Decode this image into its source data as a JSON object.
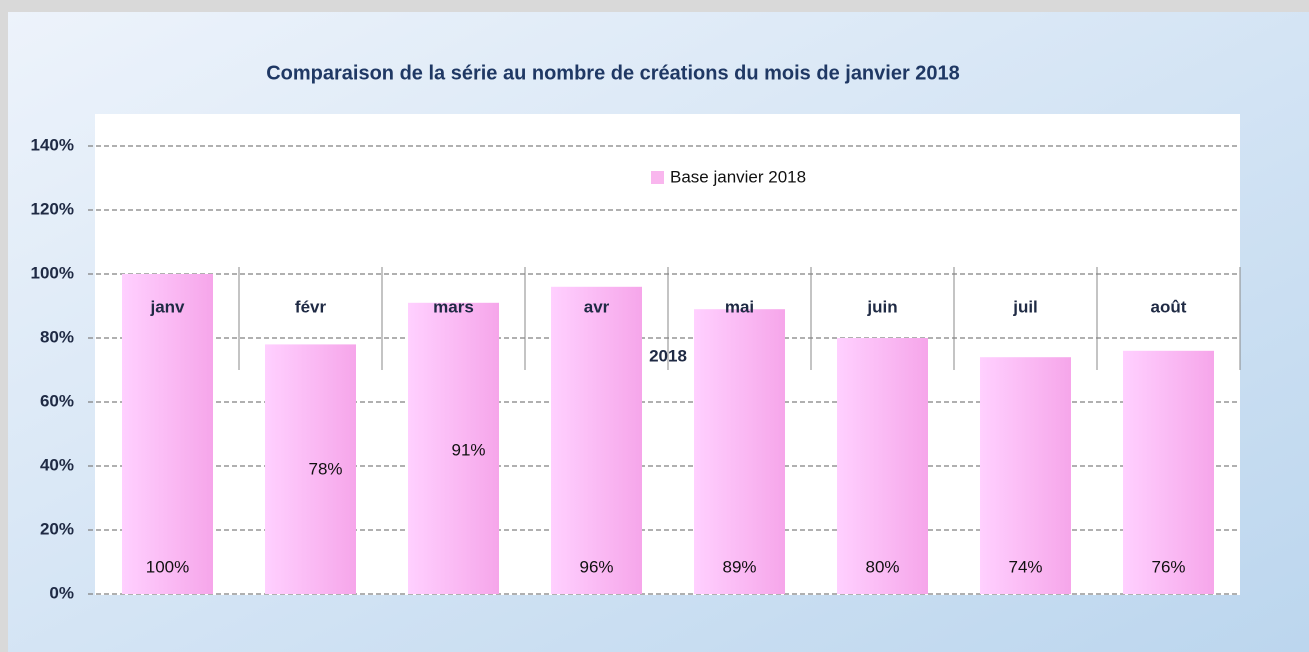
{
  "chart_data": {
    "type": "bar",
    "title": "Comparaison de la série au nombre de créations du mois de janvier 2018",
    "categories": [
      "janv",
      "févr",
      "mars",
      "avr",
      "mai",
      "juin",
      "juil",
      "août"
    ],
    "series": [
      {
        "name": "Base janvier 2018",
        "color": "#f9b6ee",
        "values": [
          100,
          78,
          91,
          96,
          89,
          80,
          74,
          76
        ],
        "value_labels": [
          "100%",
          "78%",
          "91%",
          "96%",
          "89%",
          "80%",
          "74%",
          "76%"
        ]
      }
    ],
    "annotations": [
      "2018"
    ],
    "ylim": [
      0,
      150
    ],
    "yticks": [
      {
        "value": 0,
        "label": "0%"
      },
      {
        "value": 20,
        "label": "20%"
      },
      {
        "value": 40,
        "label": "40%"
      },
      {
        "value": 60,
        "label": "60%"
      },
      {
        "value": 80,
        "label": "80%"
      },
      {
        "value": 100,
        "label": "100%"
      },
      {
        "value": 120,
        "label": "120%"
      },
      {
        "value": 140,
        "label": "140%"
      }
    ],
    "grid": true,
    "legend": "top-right"
  }
}
